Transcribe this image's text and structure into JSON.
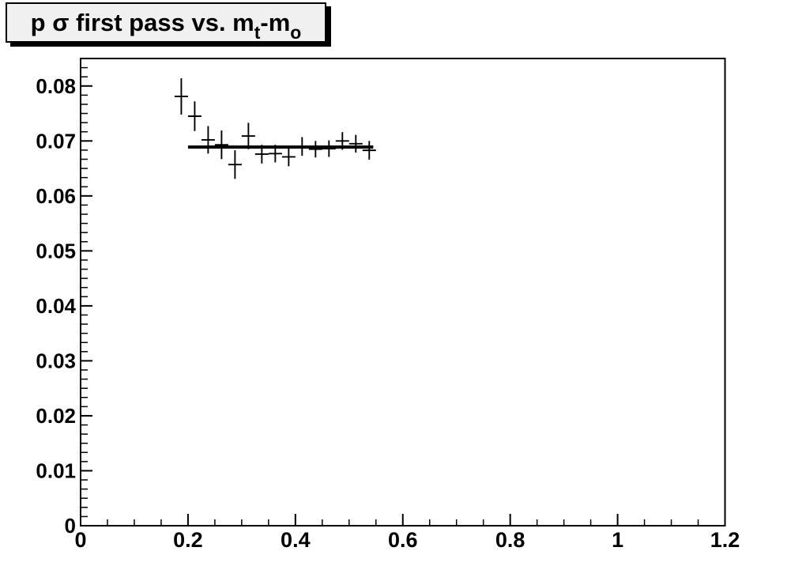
{
  "canvas": {
    "background": "#ffffff",
    "frame_color": "#000000"
  },
  "title": {
    "parts": [
      {
        "text": "p σ first pass vs. m",
        "sub": false
      },
      {
        "text": "t",
        "sub": true
      },
      {
        "text": "-m",
        "sub": false
      },
      {
        "text": "o",
        "sub": true
      }
    ],
    "box_fill": "#f0f0f0",
    "border_color": "#000000"
  },
  "chart_data": {
    "type": "scatter",
    "title": "p σ first pass vs. m_t-m_o",
    "xlabel": "",
    "ylabel": "",
    "xlim": [
      0,
      1.2
    ],
    "ylim": [
      0,
      0.085
    ],
    "grid": false,
    "legend": null,
    "x_major_ticks": [
      0,
      0.2,
      0.4,
      0.6,
      0.8,
      1,
      1.2
    ],
    "x_tick_labels": [
      "0",
      "0.2",
      "0.4",
      "0.6",
      "0.8",
      "1",
      "1.2"
    ],
    "x_minor_step": 0.05,
    "y_major_ticks": [
      0,
      0.01,
      0.02,
      0.03,
      0.04,
      0.05,
      0.06,
      0.07,
      0.08
    ],
    "y_tick_labels": [
      "0",
      "0.01",
      "0.02",
      "0.03",
      "0.04",
      "0.05",
      "0.06",
      "0.07",
      "0.08"
    ],
    "y_minor_per_major": 6,
    "series": [
      {
        "name": "data",
        "marker": "error-cross",
        "color": "#000000",
        "points": [
          {
            "x": 0.1875,
            "y": 0.0781,
            "ex": 0.0125,
            "ey": 0.0033
          },
          {
            "x": 0.2125,
            "y": 0.0745,
            "ex": 0.0125,
            "ey": 0.0027
          },
          {
            "x": 0.2375,
            "y": 0.0702,
            "ex": 0.0125,
            "ey": 0.0025
          },
          {
            "x": 0.2625,
            "y": 0.0693,
            "ex": 0.0125,
            "ey": 0.0026
          },
          {
            "x": 0.2875,
            "y": 0.0657,
            "ex": 0.0125,
            "ey": 0.0026
          },
          {
            "x": 0.3125,
            "y": 0.0709,
            "ex": 0.0125,
            "ey": 0.0024
          },
          {
            "x": 0.3375,
            "y": 0.0676,
            "ex": 0.0125,
            "ey": 0.0017
          },
          {
            "x": 0.3625,
            "y": 0.0677,
            "ex": 0.0125,
            "ey": 0.0016
          },
          {
            "x": 0.3875,
            "y": 0.0671,
            "ex": 0.0125,
            "ey": 0.0017
          },
          {
            "x": 0.4125,
            "y": 0.069,
            "ex": 0.0125,
            "ey": 0.0017
          },
          {
            "x": 0.4375,
            "y": 0.0685,
            "ex": 0.0125,
            "ey": 0.0015
          },
          {
            "x": 0.4625,
            "y": 0.0686,
            "ex": 0.0125,
            "ey": 0.0015
          },
          {
            "x": 0.4875,
            "y": 0.07,
            "ex": 0.0125,
            "ey": 0.0016
          },
          {
            "x": 0.5125,
            "y": 0.0695,
            "ex": 0.0125,
            "ey": 0.0016
          },
          {
            "x": 0.5375,
            "y": 0.0683,
            "ex": 0.0125,
            "ey": 0.0017
          }
        ]
      }
    ],
    "fit_line": {
      "x1": 0.2,
      "x2": 0.545,
      "y": 0.0689,
      "color": "#000000"
    }
  }
}
